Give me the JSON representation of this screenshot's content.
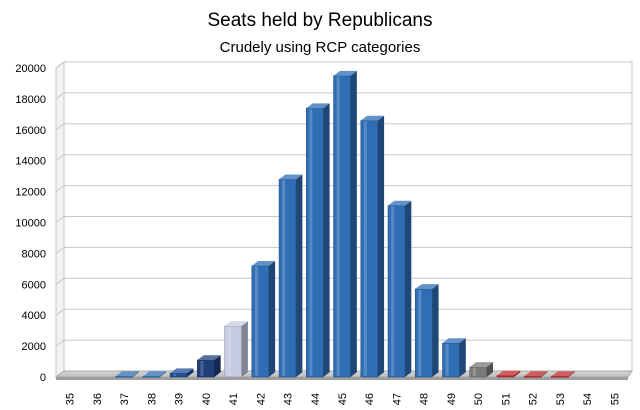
{
  "chart_data": {
    "type": "bar",
    "title": "Seats held by Republicans",
    "subtitle": "Crudely using RCP categories",
    "xlabel": "",
    "ylabel": "",
    "ylim": [
      0,
      20000
    ],
    "yticks": [
      0,
      2000,
      4000,
      6000,
      8000,
      10000,
      12000,
      14000,
      16000,
      18000,
      20000
    ],
    "grid": true,
    "categories": [
      "35",
      "36",
      "37",
      "38",
      "39",
      "40",
      "41",
      "42",
      "43",
      "44",
      "45",
      "46",
      "47",
      "48",
      "49",
      "50",
      "51",
      "52",
      "53",
      "54",
      "55"
    ],
    "values": [
      0,
      0,
      50,
      50,
      250,
      1100,
      3300,
      7200,
      12800,
      17400,
      19500,
      16600,
      11100,
      5700,
      2200,
      650,
      100,
      50,
      50,
      0,
      0
    ],
    "bar_colors": [
      "#2f6db5",
      "#2f6db5",
      "#2f6db5",
      "#2f6db5",
      "#1f4f96",
      "#1f3f7a",
      "#c6cbe2",
      "#2f6db5",
      "#2f6db5",
      "#2f6db5",
      "#2f6db5",
      "#2f6db5",
      "#2f6db5",
      "#2f6db5",
      "#2f6db5",
      "#7a7a7a",
      "#c0282b",
      "#c0282b",
      "#c0282b",
      "#c0282b",
      "#c0282b"
    ]
  }
}
